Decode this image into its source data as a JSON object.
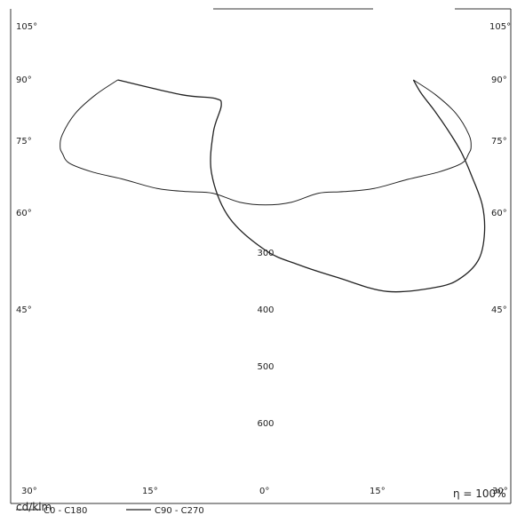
{
  "chart_data": {
    "type": "polar",
    "unit": "cd/klm",
    "efficiency": "η = 100%",
    "angle_labels": {
      "left": [
        "105°",
        "90°",
        "75°",
        "60°",
        "45°"
      ],
      "right": [
        "105°",
        "90°",
        "75°",
        "60°",
        "45°"
      ],
      "bottom": [
        "30°",
        "15°",
        "0°",
        "15°",
        "30°"
      ]
    },
    "magnitude_labels": [
      "300",
      "400",
      "500",
      "600"
    ],
    "legend": [
      "C0 - C180",
      "C90 - C270"
    ],
    "series": [
      {
        "name": "C0 - C180",
        "points": [
          {
            "angle": -90,
            "r": 260
          },
          {
            "angle": -85,
            "r": 300
          },
          {
            "angle": -80,
            "r": 340
          },
          {
            "angle": -75,
            "r": 370
          },
          {
            "angle": -72,
            "r": 380
          },
          {
            "angle": -70,
            "r": 380
          },
          {
            "angle": -67,
            "r": 375
          },
          {
            "angle": -62,
            "r": 345
          },
          {
            "angle": -55,
            "r": 305
          },
          {
            "angle": -45,
            "r": 270
          },
          {
            "angle": -35,
            "r": 240
          },
          {
            "angle": -25,
            "r": 220
          },
          {
            "angle": -12,
            "r": 220
          },
          {
            "angle": 0,
            "r": 220
          },
          {
            "angle": 12,
            "r": 220
          },
          {
            "angle": 25,
            "r": 220
          },
          {
            "angle": 35,
            "r": 240
          },
          {
            "angle": 45,
            "r": 270
          },
          {
            "angle": 55,
            "r": 305
          },
          {
            "angle": 62,
            "r": 345
          },
          {
            "angle": 67,
            "r": 375
          },
          {
            "angle": 70,
            "r": 380
          },
          {
            "angle": 72,
            "r": 380
          },
          {
            "angle": 75,
            "r": 370
          },
          {
            "angle": 80,
            "r": 340
          },
          {
            "angle": 85,
            "r": 300
          },
          {
            "angle": 90,
            "r": 260
          }
        ]
      },
      {
        "name": "C90 - C270",
        "points": [
          {
            "angle": -90,
            "r": 260
          },
          {
            "angle": -80,
            "r": 150
          },
          {
            "angle": -70,
            "r": 95
          },
          {
            "angle": -60,
            "r": 90
          },
          {
            "angle": -45,
            "r": 130
          },
          {
            "angle": -30,
            "r": 190
          },
          {
            "angle": -15,
            "r": 250
          },
          {
            "angle": 0,
            "r": 300
          },
          {
            "angle": 10,
            "r": 330
          },
          {
            "angle": 20,
            "r": 370
          },
          {
            "angle": 30,
            "r": 430
          },
          {
            "angle": 40,
            "r": 475
          },
          {
            "angle": 45,
            "r": 490
          },
          {
            "angle": 50,
            "r": 490
          },
          {
            "angle": 55,
            "r": 470
          },
          {
            "angle": 60,
            "r": 440
          },
          {
            "angle": 65,
            "r": 400
          },
          {
            "angle": 70,
            "r": 365
          },
          {
            "angle": 75,
            "r": 330
          },
          {
            "angle": 80,
            "r": 300
          },
          {
            "angle": 85,
            "r": 275
          },
          {
            "angle": 90,
            "r": 260
          }
        ]
      }
    ]
  }
}
